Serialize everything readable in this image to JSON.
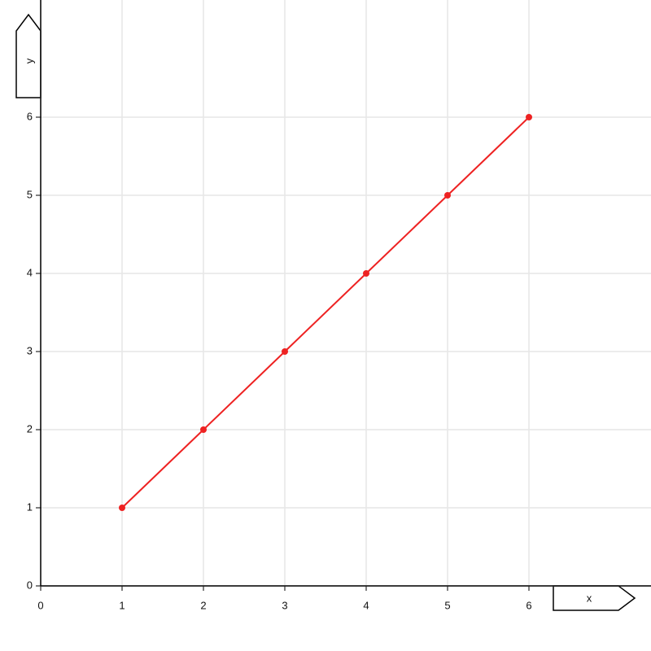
{
  "chart_data": {
    "type": "line",
    "x": [
      1,
      2,
      3,
      4,
      5,
      6
    ],
    "values": [
      1,
      2,
      3,
      4,
      5,
      6
    ],
    "color": "#ee2222",
    "xlabel": "x",
    "ylabel": "y",
    "xlim": [
      0,
      7.5
    ],
    "ylim": [
      0,
      7.5
    ],
    "xticks": [
      0,
      1,
      2,
      3,
      4,
      5,
      6
    ],
    "yticks": [
      0,
      1,
      2,
      3,
      4,
      5,
      6
    ],
    "grid": true
  }
}
